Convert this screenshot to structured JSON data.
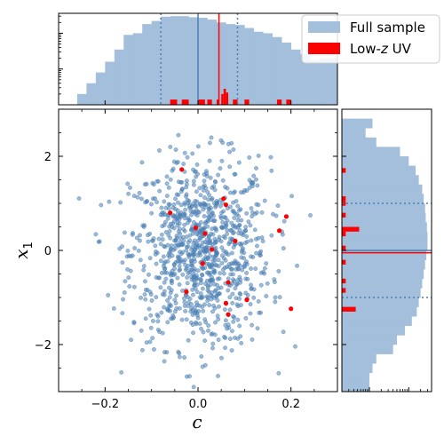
{
  "chart_data": {
    "type": "scatter",
    "xlabel": "c",
    "ylabel": "x",
    "ylabel_sub": "1",
    "xlim": [
      -0.3,
      0.3
    ],
    "ylim": [
      -3,
      3
    ],
    "x_ticks": [
      -0.2,
      0.0,
      0.2
    ],
    "x_tick_labels": [
      "−0.2",
      "0.0",
      "0.2"
    ],
    "y_ticks": [
      -2,
      0,
      2
    ],
    "y_tick_labels": [
      "−2",
      "0",
      "2"
    ],
    "colors": {
      "full": "#4a7fb5",
      "full_hist": "#a3bfdc",
      "lowz": "#ff0000",
      "median_line": "#4a7fb5",
      "lowz_line": "#ff0000"
    },
    "legend": {
      "placement": "top-right",
      "entries": [
        {
          "label": "Full sample",
          "color": "#a3bfdc"
        },
        {
          "label_prefix": "Low-",
          "label_italic": "z",
          "label_suffix": " UV",
          "color": "#ff0000"
        }
      ]
    },
    "full_sample": {
      "n": 1000,
      "x_mean": 0.005,
      "x_std": 0.075,
      "y_mean": -0.05,
      "y_std": 1.0
    },
    "lowz_uv": {
      "points": [
        {
          "x": -0.035,
          "y": 1.72
        },
        {
          "x": -0.06,
          "y": 0.8
        },
        {
          "x": -0.005,
          "y": 0.48
        },
        {
          "x": 0.015,
          "y": 0.36
        },
        {
          "x": 0.03,
          "y": 0.02
        },
        {
          "x": 0.055,
          "y": 1.1
        },
        {
          "x": 0.06,
          "y": 0.97
        },
        {
          "x": 0.08,
          "y": 0.2
        },
        {
          "x": 0.175,
          "y": 0.42
        },
        {
          "x": 0.19,
          "y": 0.72
        },
        {
          "x": 0.01,
          "y": -0.28
        },
        {
          "x": -0.025,
          "y": -0.88
        },
        {
          "x": 0.065,
          "y": -0.68
        },
        {
          "x": 0.105,
          "y": -1.05
        },
        {
          "x": 0.06,
          "y": -1.12
        },
        {
          "x": 0.065,
          "y": -1.36
        },
        {
          "x": 0.2,
          "y": -1.24
        }
      ]
    },
    "top_hist": {
      "scale": "log",
      "bin_edges": [
        -0.3,
        -0.28,
        -0.26,
        -0.24,
        -0.22,
        -0.2,
        -0.18,
        -0.16,
        -0.14,
        -0.12,
        -0.1,
        -0.08,
        -0.06,
        -0.04,
        -0.02,
        0.0,
        0.02,
        0.04,
        0.06,
        0.08,
        0.1,
        0.12,
        0.14,
        0.16,
        0.18,
        0.2,
        0.22,
        0.24,
        0.26,
        0.28,
        0.3
      ],
      "full_density": [
        0,
        0,
        0.02,
        0.04,
        0.08,
        0.16,
        0.35,
        0.9,
        1.0,
        1.8,
        2.2,
        2.9,
        3.0,
        3.0,
        2.8,
        2.7,
        2.4,
        2.0,
        1.8,
        1.7,
        1.4,
        1.1,
        1.0,
        0.78,
        0.55,
        0.35,
        0.26,
        0.18,
        0.2,
        0.2
      ],
      "median": 0.0,
      "lowz_median": 0.045,
      "dotted": [
        -0.08,
        0.085
      ],
      "lowz_bins": [
        {
          "x0": -0.06,
          "x1": -0.045,
          "h": 0.014
        },
        {
          "x0": -0.035,
          "x1": -0.02,
          "h": 0.014
        },
        {
          "x0": 0.0,
          "x1": 0.015,
          "h": 0.014
        },
        {
          "x0": 0.02,
          "x1": 0.03,
          "h": 0.014
        },
        {
          "x0": 0.04,
          "x1": 0.045,
          "h": 0.014
        },
        {
          "x0": 0.05,
          "x1": 0.055,
          "h": 0.02
        },
        {
          "x0": 0.055,
          "x1": 0.06,
          "h": 0.028
        },
        {
          "x0": 0.06,
          "x1": 0.065,
          "h": 0.022
        },
        {
          "x0": 0.075,
          "x1": 0.085,
          "h": 0.014
        },
        {
          "x0": 0.1,
          "x1": 0.11,
          "h": 0.014
        },
        {
          "x0": 0.17,
          "x1": 0.18,
          "h": 0.014
        },
        {
          "x0": 0.19,
          "x1": 0.2,
          "h": 0.014
        }
      ]
    },
    "right_hist": {
      "scale": "log",
      "bin_edges": [
        -3.0,
        -2.8,
        -2.6,
        -2.4,
        -2.2,
        -2.0,
        -1.8,
        -1.6,
        -1.4,
        -1.2,
        -1.0,
        -0.8,
        -0.6,
        -0.4,
        -0.2,
        0.0,
        0.2,
        0.4,
        0.6,
        0.8,
        1.0,
        1.2,
        1.4,
        1.6,
        1.8,
        2.0,
        2.2,
        2.4,
        2.6,
        2.8,
        3.0
      ],
      "full_density": [
        0.01,
        0.01,
        0.012,
        0.015,
        0.04,
        0.05,
        0.08,
        0.12,
        0.16,
        0.18,
        0.2,
        0.22,
        0.24,
        0.26,
        0.28,
        0.3,
        0.3,
        0.29,
        0.27,
        0.26,
        0.24,
        0.22,
        0.18,
        0.15,
        0.1,
        0.06,
        0.015,
        0.008,
        0.012,
        0.0
      ],
      "median": 0.0,
      "lowz_median": -0.05,
      "dotted": [
        -1.0,
        1.0
      ],
      "lowz_bins": [
        {
          "y0": -1.3,
          "y1": -1.2,
          "h": 0.0045
        },
        {
          "y0": -0.9,
          "y1": -0.8,
          "h": 0.0025
        },
        {
          "y0": -0.7,
          "y1": -0.6,
          "h": 0.0025
        },
        {
          "y0": -0.3,
          "y1": -0.2,
          "h": 0.0025
        },
        {
          "y0": 0.0,
          "y1": 0.1,
          "h": 0.0025
        },
        {
          "y0": 0.3,
          "y1": 0.4,
          "h": 0.0025
        },
        {
          "y0": 0.4,
          "y1": 0.5,
          "h": 0.0055
        },
        {
          "y0": 0.7,
          "y1": 0.8,
          "h": 0.0025
        },
        {
          "y0": 0.95,
          "y1": 1.05,
          "h": 0.0025
        },
        {
          "y0": 1.05,
          "y1": 1.15,
          "h": 0.0025
        },
        {
          "y0": 1.65,
          "y1": 1.75,
          "h": 0.0025
        }
      ]
    }
  }
}
